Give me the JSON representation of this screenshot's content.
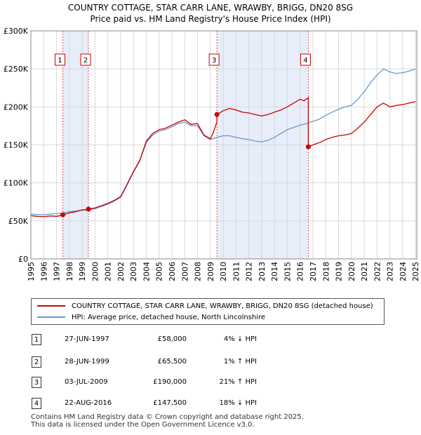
{
  "title_line1": "COUNTRY COTTAGE, STAR CARR LANE, WRAWBY, BRIGG, DN20 8SG",
  "title_line2": "Price paid vs. HM Land Registry's House Price Index (HPI)",
  "chart_data": {
    "type": "line",
    "xlim": [
      1995.0,
      2025.1
    ],
    "ylim": [
      0,
      300000
    ],
    "y_ticks": [
      0,
      50000,
      100000,
      150000,
      200000,
      250000,
      300000
    ],
    "y_tick_labels": [
      "£0",
      "£50K",
      "£100K",
      "£150K",
      "£200K",
      "£250K",
      "£300K"
    ],
    "x_ticks": [
      1995,
      1996,
      1997,
      1998,
      1999,
      2000,
      2001,
      2002,
      2003,
      2004,
      2005,
      2006,
      2007,
      2008,
      2009,
      2010,
      2011,
      2012,
      2013,
      2014,
      2015,
      2016,
      2017,
      2018,
      2019,
      2020,
      2021,
      2022,
      2023,
      2024,
      2025
    ],
    "grid": true,
    "series": [
      {
        "name": "COUNTRY COTTAGE, STAR CARR LANE, WRAWBY, BRIGG, DN20 8SG (detached house)",
        "color": "#cc0000",
        "x": [
          1995.0,
          1995.5,
          1996.0,
          1996.5,
          1997.0,
          1997.49,
          1997.49,
          1998.0,
          1998.5,
          1999.0,
          1999.49,
          1999.49,
          2000.0,
          2000.5,
          2001.0,
          2001.5,
          2002.0,
          2002.5,
          2003.0,
          2003.5,
          2004.0,
          2004.5,
          2005.0,
          2005.5,
          2006.0,
          2006.5,
          2007.0,
          2007.5,
          2008.0,
          2008.5,
          2009.0,
          2009.2,
          2009.51,
          2009.51,
          2010.0,
          2010.5,
          2011.0,
          2011.5,
          2012.0,
          2012.5,
          2013.0,
          2013.5,
          2014.0,
          2014.5,
          2015.0,
          2015.5,
          2016.0,
          2016.3,
          2016.64,
          2016.64,
          2017.0,
          2017.5,
          2018.0,
          2018.5,
          2019.0,
          2019.5,
          2020.0,
          2020.5,
          2021.0,
          2021.5,
          2022.0,
          2022.5,
          2023.0,
          2023.5,
          2024.0,
          2024.5,
          2025.0
        ],
        "values": [
          57000,
          56000,
          55500,
          56500,
          56000,
          57500,
          58000,
          60500,
          62000,
          64500,
          65000,
          65500,
          67000,
          70000,
          73000,
          77000,
          82000,
          98000,
          115000,
          130000,
          155000,
          165000,
          170000,
          172000,
          176000,
          180000,
          183000,
          177000,
          178000,
          163000,
          158000,
          165000,
          180000,
          190000,
          195000,
          198000,
          196000,
          193000,
          192000,
          190000,
          188000,
          190000,
          193000,
          196000,
          200000,
          205000,
          210000,
          208000,
          212000,
          147500,
          150000,
          153000,
          157000,
          160000,
          162000,
          163000,
          165000,
          172000,
          180000,
          190000,
          200000,
          205000,
          200000,
          202000,
          203000,
          205000,
          207000
        ]
      },
      {
        "name": "HPI: Average price, detached house, North Lincolnshire",
        "color": "#6699cc",
        "x": [
          1995.0,
          1995.5,
          1996.0,
          1996.5,
          1997.0,
          1997.5,
          1998.0,
          1998.5,
          1999.0,
          1999.5,
          2000.0,
          2000.5,
          2001.0,
          2001.5,
          2002.0,
          2002.5,
          2003.0,
          2003.5,
          2004.0,
          2004.5,
          2005.0,
          2005.5,
          2006.0,
          2006.5,
          2007.0,
          2007.5,
          2008.0,
          2008.5,
          2009.0,
          2009.5,
          2010.0,
          2010.5,
          2011.0,
          2011.5,
          2012.0,
          2012.5,
          2013.0,
          2013.5,
          2014.0,
          2014.5,
          2015.0,
          2015.5,
          2016.0,
          2016.5,
          2017.0,
          2017.5,
          2018.0,
          2018.5,
          2019.0,
          2019.5,
          2020.0,
          2020.5,
          2021.0,
          2021.5,
          2022.0,
          2022.5,
          2023.0,
          2023.5,
          2024.0,
          2024.5,
          2025.0
        ],
        "values": [
          59000,
          58500,
          58000,
          59000,
          59500,
          60500,
          62000,
          63000,
          64000,
          64500,
          66000,
          69000,
          72000,
          76000,
          81000,
          97000,
          114000,
          129000,
          153000,
          163000,
          168000,
          170000,
          174000,
          178000,
          180000,
          175000,
          175000,
          162000,
          157000,
          160000,
          162000,
          162000,
          160000,
          158000,
          157000,
          155000,
          154000,
          156000,
          160000,
          165000,
          170000,
          173000,
          176000,
          178000,
          181000,
          184000,
          189000,
          193000,
          197000,
          200000,
          202000,
          210000,
          220000,
          232000,
          242000,
          250000,
          246000,
          244000,
          245000,
          247000,
          250000
        ]
      }
    ],
    "sales": [
      {
        "label": "1",
        "x": 1997.49,
        "price": 58000
      },
      {
        "label": "2",
        "x": 1999.49,
        "price": 65500
      },
      {
        "label": "3",
        "x": 2009.51,
        "price": 190000
      },
      {
        "label": "4",
        "x": 2016.64,
        "price": 147500
      }
    ],
    "shaded_periods": [
      [
        1997.49,
        1999.49
      ],
      [
        2009.51,
        2016.64
      ]
    ]
  },
  "legend": [
    {
      "label": "COUNTRY COTTAGE, STAR CARR LANE, WRAWBY, BRIGG, DN20 8SG (detached house)",
      "color": "#cc0000"
    },
    {
      "label": "HPI: Average price, detached house, North Lincolnshire",
      "color": "#6699cc"
    }
  ],
  "table": [
    {
      "num": "1",
      "date": "27-JUN-1997",
      "price": "£58,000",
      "delta": "4% ↓ HPI"
    },
    {
      "num": "2",
      "date": "28-JUN-1999",
      "price": "£65,500",
      "delta": "1% ↑ HPI"
    },
    {
      "num": "3",
      "date": "03-JUL-2009",
      "price": "£190,000",
      "delta": "21% ↑ HPI"
    },
    {
      "num": "4",
      "date": "22-AUG-2016",
      "price": "£147,500",
      "delta": "18% ↓ HPI"
    }
  ],
  "footer_line1": "Contains HM Land Registry data © Crown copyright and database right 2025.",
  "footer_line2": "This data is licensed under the Open Government Licence v3.0."
}
